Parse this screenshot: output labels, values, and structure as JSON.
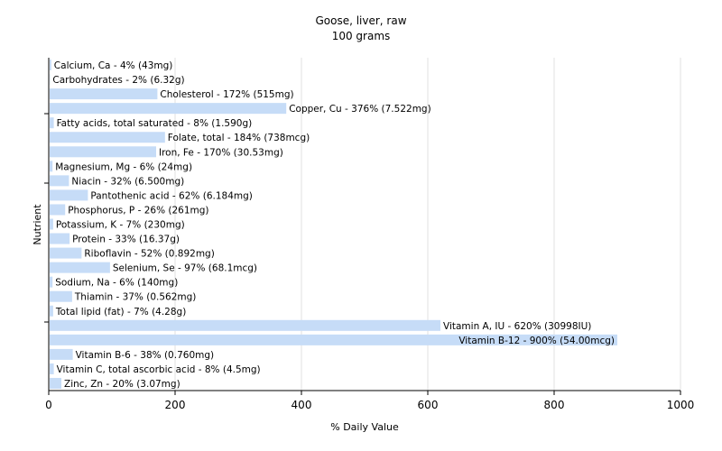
{
  "chart_data": {
    "type": "bar",
    "orientation": "horizontal",
    "title": "Goose, liver, raw",
    "subtitle": "100 grams",
    "xlabel": "% Daily Value",
    "ylabel": "Nutrient",
    "xlim": [
      0,
      1000
    ],
    "xticks": [
      0,
      200,
      400,
      600,
      800,
      1000
    ],
    "grid": true,
    "bar_color": "#c6dcf7",
    "grid_color": "#e2e2e2",
    "categories": [
      "Calcium, Ca",
      "Carbohydrates",
      "Cholesterol",
      "Copper, Cu",
      "Fatty acids, total saturated",
      "Folate, total",
      "Iron, Fe",
      "Magnesium, Mg",
      "Niacin",
      "Pantothenic acid",
      "Phosphorus, P",
      "Potassium, K",
      "Protein",
      "Riboflavin",
      "Selenium, Se",
      "Sodium, Na",
      "Thiamin",
      "Total lipid (fat)",
      "Vitamin A, IU",
      "Vitamin B-12",
      "Vitamin B-6",
      "Vitamin C, total ascorbic acid",
      "Zinc, Zn"
    ],
    "values": [
      4,
      2,
      172,
      376,
      8,
      184,
      170,
      6,
      32,
      62,
      26,
      7,
      33,
      52,
      97,
      6,
      37,
      7,
      620,
      900,
      38,
      8,
      20
    ],
    "labels": [
      "Calcium, Ca - 4% (43mg)",
      "Carbohydrates - 2% (6.32g)",
      "Cholesterol - 172% (515mg)",
      "Copper, Cu - 376% (7.522mg)",
      "Fatty acids, total saturated - 8% (1.590g)",
      "Folate, total - 184% (738mcg)",
      "Iron, Fe - 170% (30.53mg)",
      "Magnesium, Mg - 6% (24mg)",
      "Niacin - 32% (6.500mg)",
      "Pantothenic acid - 62% (6.184mg)",
      "Phosphorus, P - 26% (261mg)",
      "Potassium, K - 7% (230mg)",
      "Protein - 33% (16.37g)",
      "Riboflavin - 52% (0.892mg)",
      "Selenium, Se - 97% (68.1mcg)",
      "Sodium, Na - 6% (140mg)",
      "Thiamin - 37% (0.562mg)",
      "Total lipid (fat) - 7% (4.28g)",
      "Vitamin A, IU - 620% (30998IU)",
      "Vitamin B-12 - 900% (54.00mcg)",
      "Vitamin B-6 - 38% (0.760mg)",
      "Vitamin C, total ascorbic acid - 8% (4.5mg)",
      "Zinc, Zn - 20% (3.07mg)"
    ]
  }
}
